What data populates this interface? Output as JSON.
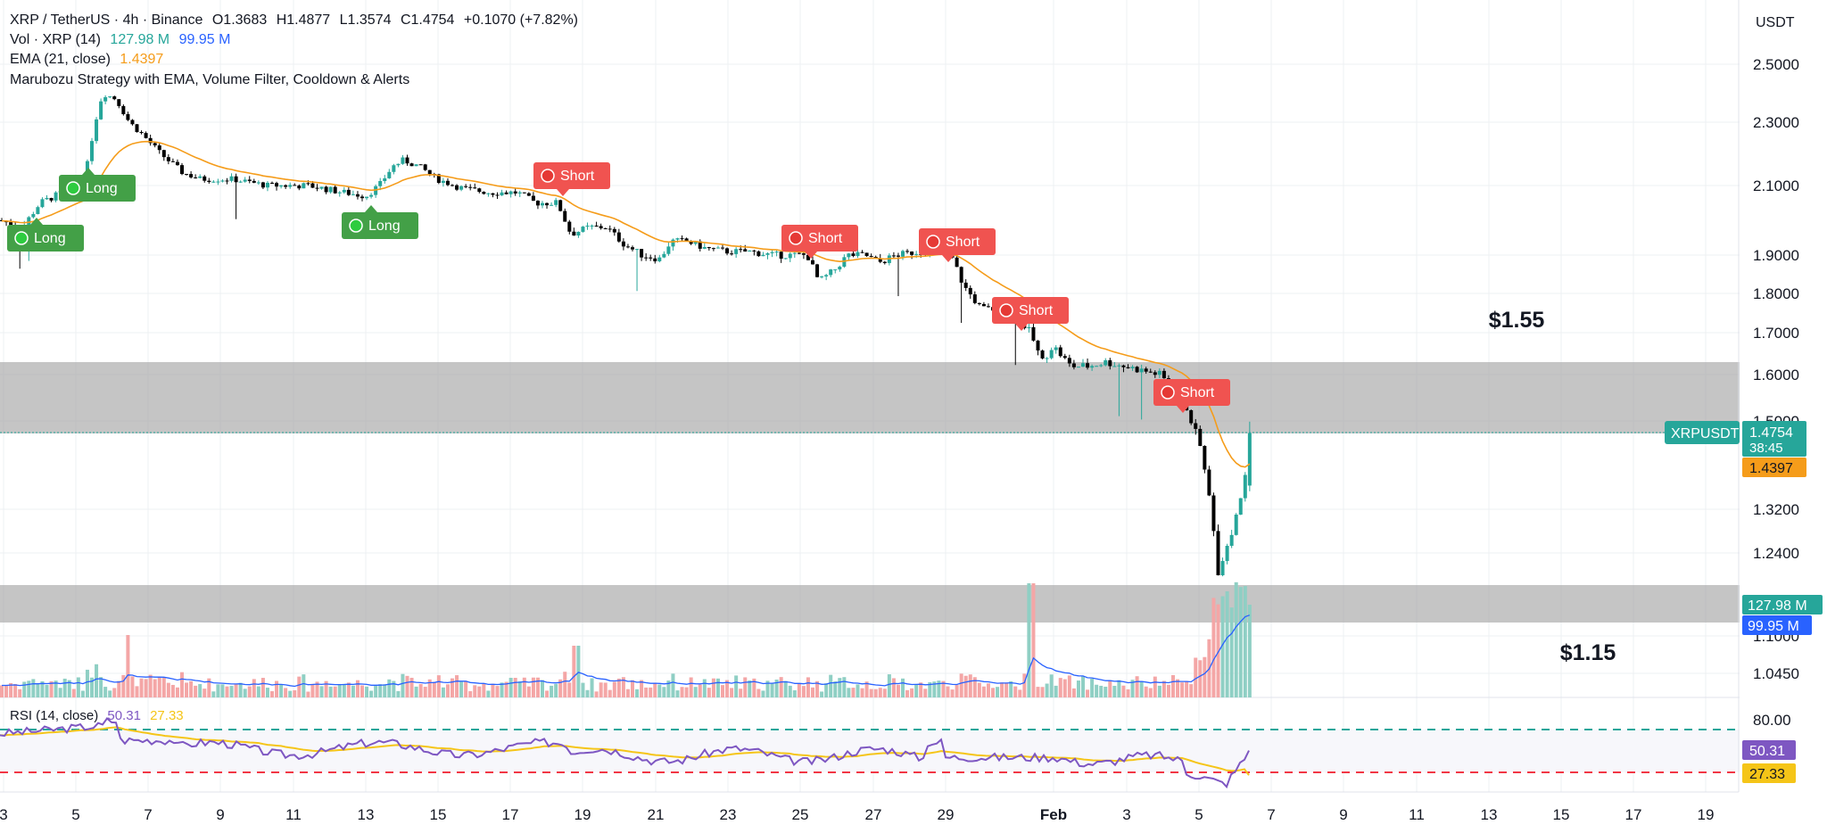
{
  "header": {
    "symbol_line": "XRP / TetherUS · 4h · Binance",
    "open": "O1.3683",
    "high": "H1.4877",
    "low": "L1.3574",
    "close": "C1.4754",
    "change": "+0.1070 (+7.82%)",
    "vol_label": "Vol · XRP (14)",
    "vol_value": "127.98 M",
    "vol_ma": "99.95 M",
    "ema_label": "EMA (21, close)",
    "ema_value": "1.4397",
    "strategy_label": "Marubozu Strategy with EMA, Volume Filter, Cooldown & Alerts"
  },
  "rsi_header": {
    "label": "RSI (14, close)",
    "value": "50.31",
    "ma": "27.33"
  },
  "currency": "USDT",
  "price_labels": {
    "symbol": "XRPUSDT",
    "price": "1.4754",
    "countdown": "38:45",
    "ema": "1.4397",
    "vol": "127.98 M",
    "vol_ma": "99.95 M",
    "rsi": "50.31",
    "rsi_ma": "27.33"
  },
  "annotations": {
    "upper": "$1.55",
    "lower": "$1.15"
  },
  "colors": {
    "up": "#26a69a",
    "down": "#000000",
    "ema": "#f59c1a",
    "vol_up": "#8fcfc4",
    "vol_down": "#f4a6a6",
    "rsi": "#7e57c2",
    "rsi_ma": "#f5c518",
    "long": "#43a047",
    "short": "#f05350",
    "zone": "#a6a6a6"
  },
  "chart_data": {
    "type": "candlestick",
    "y_axis_ticks": [
      "2.5000",
      "2.3000",
      "2.1000",
      "1.9000",
      "1.8000",
      "1.7000",
      "1.6000",
      "1.5000",
      "1.3200",
      "1.2400",
      "1.1000",
      "1.0450"
    ],
    "rsi_axis_ticks": [
      "80.00"
    ],
    "x_axis_ticks": [
      "3",
      "5",
      "7",
      "9",
      "11",
      "13",
      "15",
      "17",
      "19",
      "21",
      "23",
      "25",
      "27",
      "29",
      "Feb",
      "3",
      "5",
      "7",
      "9",
      "11",
      "13",
      "15",
      "17",
      "19"
    ],
    "zones": [
      {
        "from": 1.49,
        "to": 1.62,
        "label": "$1.55"
      },
      {
        "from": 1.12,
        "to": 1.19,
        "label": "$1.15"
      }
    ],
    "signals": [
      {
        "type": "Long",
        "date": "Jan 3"
      },
      {
        "type": "Long",
        "date": "Jan 5"
      },
      {
        "type": "Long",
        "date": "Jan 13"
      },
      {
        "type": "Short",
        "date": "Jan 18"
      },
      {
        "type": "Short",
        "date": "Jan 25"
      },
      {
        "type": "Short",
        "date": "Jan 28"
      },
      {
        "type": "Short",
        "date": "Jan 31"
      },
      {
        "type": "Short",
        "date": "Feb 4"
      }
    ],
    "last": {
      "open": 1.3683,
      "high": 1.4877,
      "low": 1.3574,
      "close": 1.4754,
      "ema": 1.4397
    },
    "rsi": {
      "overbought": 70,
      "oversold": 30,
      "value": 50.31,
      "ma": 27.33
    }
  }
}
